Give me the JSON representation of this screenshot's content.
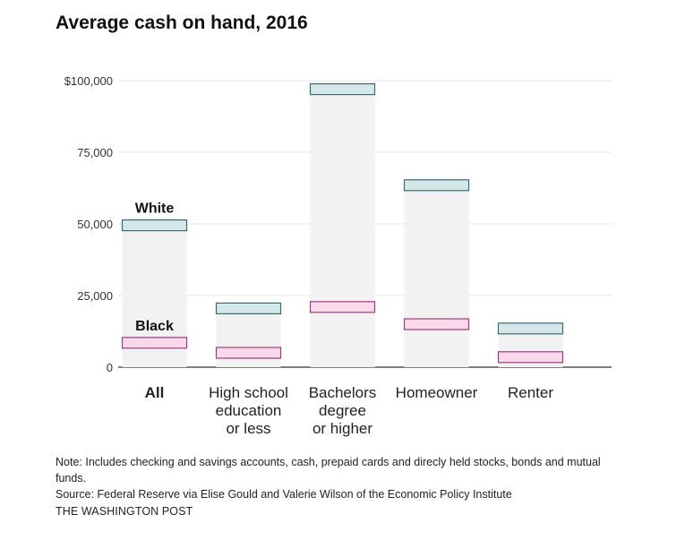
{
  "title": "Average cash on hand, 2016",
  "chart_data": {
    "type": "bar",
    "title": "Average cash on hand, 2016",
    "categories": [
      [
        "All"
      ],
      [
        "High school",
        "education",
        "or less"
      ],
      [
        "Bachelors",
        "degree",
        "or higher"
      ],
      [
        "Homeowner"
      ],
      [
        "Renter"
      ]
    ],
    "series": [
      {
        "name": "White",
        "values": [
          49500,
          20500,
          97000,
          63500,
          13500
        ]
      },
      {
        "name": "Black",
        "values": [
          8500,
          5000,
          21000,
          15000,
          3500
        ]
      }
    ],
    "y_ticks": [
      {
        "value": 0,
        "label": "0"
      },
      {
        "value": 25000,
        "label": "25,000"
      },
      {
        "value": 50000,
        "label": "50,000"
      },
      {
        "value": 75000,
        "label": "75,000"
      },
      {
        "value": 100000,
        "label": "$100,000"
      }
    ],
    "ylim": [
      0,
      100000
    ],
    "grid": true,
    "bold_category_index": 0,
    "colors": {
      "white_fill": "#d4e7e9",
      "white_stroke": "#3b6b73",
      "black_fill": "#f9d9ea",
      "black_stroke": "#9b3d7f",
      "column_fill": "#f2f2f2",
      "grid": "#e4e4e4",
      "axis": "#333333"
    }
  },
  "footer": {
    "note": "Note: Includes checking and savings accounts, cash, prepaid cards and direcly held stocks, bonds and mutual funds.",
    "source": "Source: Federal Reserve via Elise Gould and Valerie Wilson of the Economic Policy Institute",
    "credit": "THE WASHINGTON POST"
  }
}
